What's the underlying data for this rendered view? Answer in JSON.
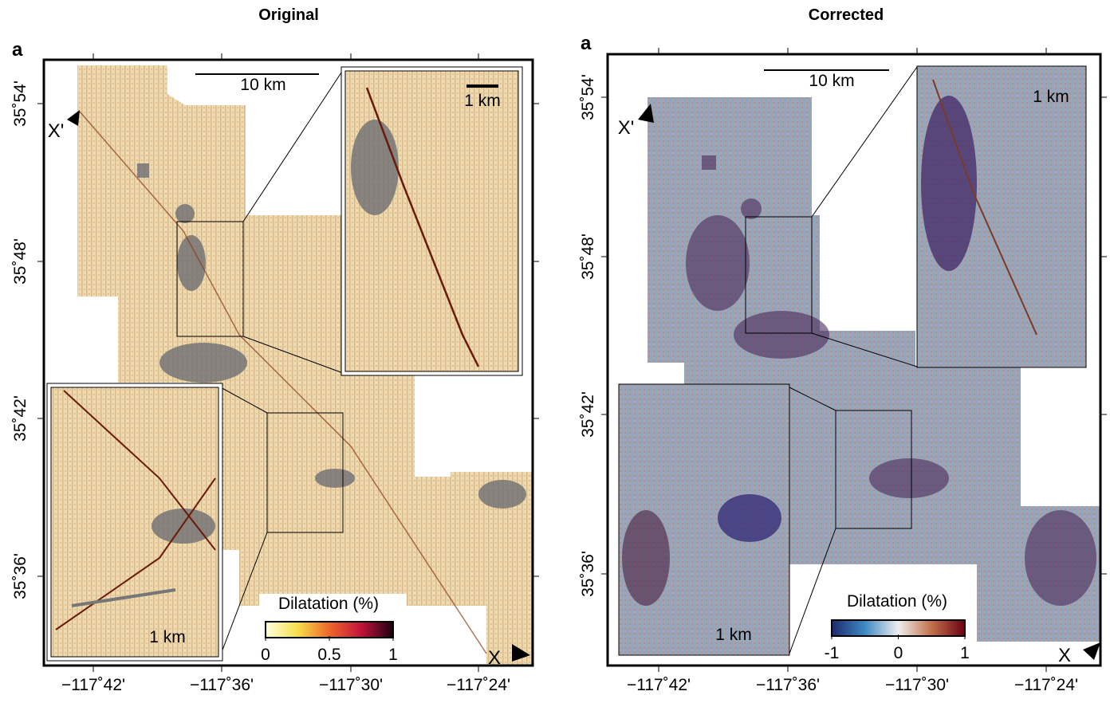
{
  "panels": [
    {
      "title": "Original",
      "label": "a",
      "lat_labels": [
        "35˚54'",
        "35˚48'",
        "35˚42'",
        "35˚36'"
      ],
      "lon_labels": [
        "−117˚42'",
        "−117˚36'",
        "−117˚30'",
        "−117˚24'"
      ],
      "profile_start": "X'",
      "profile_end": "X",
      "scale_bar": "10 km",
      "inset_top_scale": "1 km",
      "inset_bottom_scale": "1 km",
      "colorbar": {
        "label": "Dilatation (%)",
        "lim": [
          0,
          1
        ],
        "ticks": [
          0,
          0.5,
          1
        ]
      }
    },
    {
      "title": "Corrected",
      "label": "a",
      "lat_labels": [
        "35˚54'",
        "35˚48'",
        "35˚42'",
        "35˚36'"
      ],
      "lon_labels": [
        "−117˚42'",
        "−117˚36'",
        "−117˚30'",
        "−117˚24'"
      ],
      "profile_start": "X'",
      "profile_end": "X",
      "scale_bar": "10 km",
      "inset_top_scale": "1 km",
      "inset_bottom_scale": "1 km",
      "colorbar": {
        "label": "Dilatation (%)",
        "lim": [
          -1,
          1
        ],
        "ticks": [
          -1,
          0,
          1
        ]
      }
    }
  ]
}
